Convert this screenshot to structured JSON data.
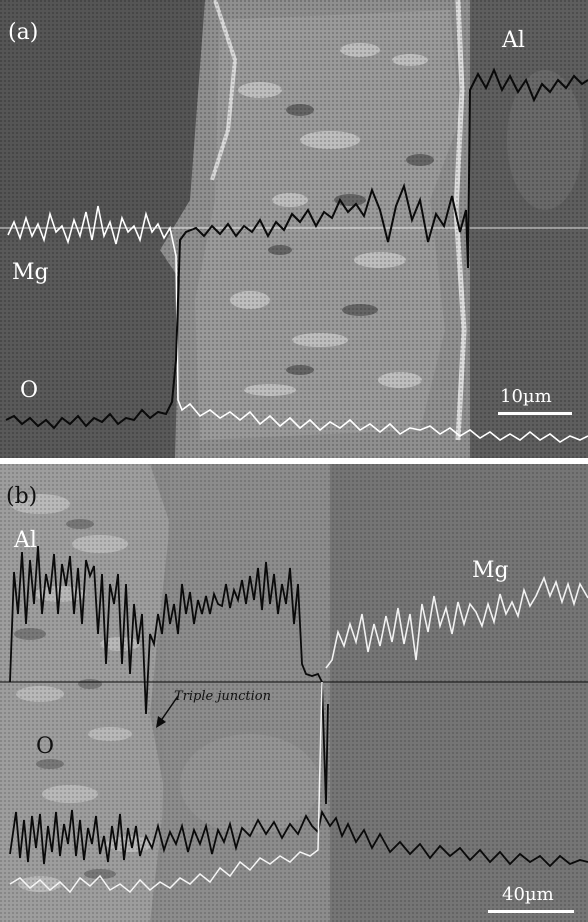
{
  "panel_a": {
    "label": "(a)",
    "elements": {
      "al": "Al",
      "mg": "Mg",
      "o": "O"
    },
    "scale_bar": "10µm"
  },
  "panel_b": {
    "label": "(b)",
    "elements": {
      "al": "Al",
      "mg": "Mg",
      "o": "O"
    },
    "annotation": "Triple junction",
    "scale_bar": "40µm"
  }
}
